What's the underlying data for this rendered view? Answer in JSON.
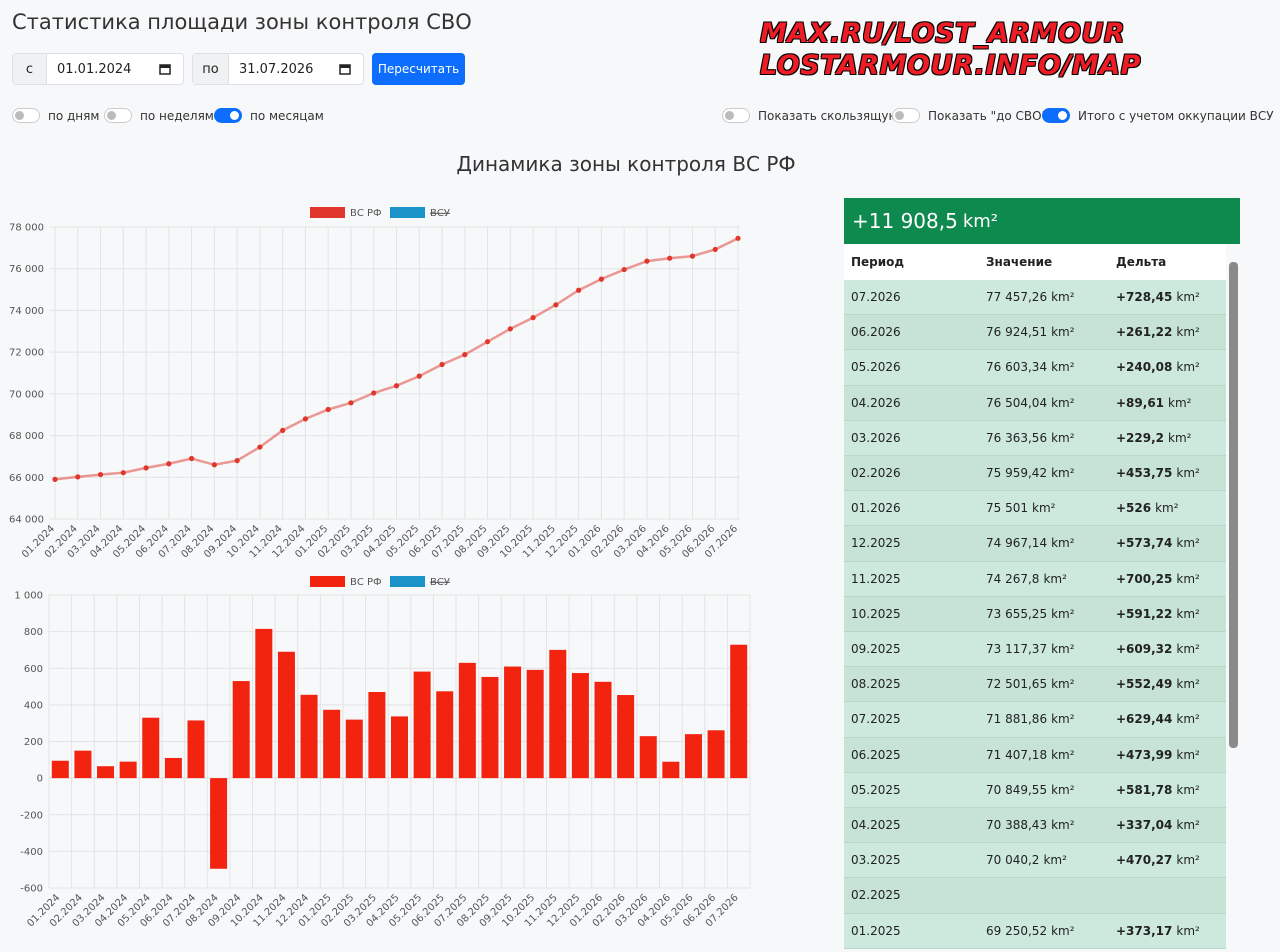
{
  "header": {
    "title": "Статистика площади зоны контроля СВО",
    "from_label": "с",
    "from_date": "01.01.2024",
    "to_label": "по",
    "to_date": "31.07.2026",
    "button": "Пересчитать"
  },
  "watermark": [
    "MAX.RU/LOST_ARMOUR",
    "LOSTARMOUR.INFO/MAP"
  ],
  "toggles_left": [
    {
      "label": "по дням",
      "on": false
    },
    {
      "label": "по неделям",
      "on": false
    },
    {
      "label": "по месяцам",
      "on": true
    }
  ],
  "toggles_right": [
    {
      "label": "Показать скользящую",
      "on": false
    },
    {
      "label": "Показать \"до СВО\"",
      "on": false
    },
    {
      "label": "Итого с учетом оккупации ВСУ",
      "on": true
    }
  ],
  "chart_data": [
    {
      "type": "line",
      "title": "Динамика зоны контроля ВС РФ",
      "categories": [
        "01.2024",
        "02.2024",
        "03.2024",
        "04.2024",
        "05.2024",
        "06.2024",
        "07.2024",
        "08.2024",
        "09.2024",
        "10.2024",
        "11.2024",
        "12.2024",
        "01.2025",
        "02.2025",
        "03.2025",
        "04.2025",
        "05.2025",
        "06.2025",
        "07.2025",
        "08.2025",
        "09.2025",
        "10.2025",
        "11.2025",
        "12.2025",
        "01.2026",
        "02.2026",
        "03.2026",
        "04.2026",
        "05.2026",
        "06.2026",
        "07.2026"
      ],
      "series": [
        {
          "name": "ВС РФ",
          "color": "#e0362c",
          "values": [
            65900,
            66020,
            66130,
            66220,
            66450,
            66650,
            66900,
            66600,
            66800,
            67450,
            68250,
            68800,
            69250.52,
            69569.93,
            70040.2,
            70388.43,
            70849.55,
            71407.18,
            71881.86,
            72501.65,
            73117.37,
            73655.25,
            74267.8,
            74967.14,
            75501,
            75959.42,
            76363.56,
            76504.04,
            76603.34,
            76924.51,
            77457.26
          ]
        },
        {
          "name": "ВСУ",
          "color": "#1a93c9",
          "hidden": true
        }
      ],
      "ylim": [
        64000,
        78000
      ],
      "yticks": [
        {
          "value": 64000,
          "label": "64 000"
        },
        {
          "value": 66000,
          "label": "66 000"
        },
        {
          "value": 68000,
          "label": "68 000"
        },
        {
          "value": 70000,
          "label": "70 000"
        },
        {
          "value": 72000,
          "label": "72 000"
        },
        {
          "value": 74000,
          "label": "74 000"
        },
        {
          "value": 76000,
          "label": "76 000"
        },
        {
          "value": 78000,
          "label": "78 000"
        }
      ],
      "grid": true
    },
    {
      "type": "bar",
      "categories": [
        "01.2024",
        "02.2024",
        "03.2024",
        "04.2024",
        "05.2024",
        "06.2024",
        "07.2024",
        "08.2024",
        "09.2024",
        "10.2024",
        "11.2024",
        "12.2024",
        "01.2025",
        "02.2025",
        "03.2025",
        "04.2025",
        "05.2025",
        "06.2025",
        "07.2025",
        "08.2025",
        "09.2025",
        "10.2025",
        "11.2025",
        "12.2025",
        "01.2026",
        "02.2026",
        "03.2026",
        "04.2026",
        "05.2026",
        "06.2026",
        "07.2026"
      ],
      "series": [
        {
          "name": "ВС РФ",
          "color": "#f2230f",
          "values": [
            95,
            150,
            65,
            90,
            330,
            110,
            315,
            -495,
            530,
            815,
            690,
            455,
            373.17,
            319.41,
            470.27,
            337.04,
            581.78,
            473.99,
            629.44,
            552.49,
            609.32,
            591.22,
            700.25,
            573.74,
            526,
            453.75,
            229.2,
            89.61,
            240.08,
            261.22,
            728.45
          ]
        },
        {
          "name": "ВСУ",
          "color": "#1a93c9",
          "hidden": true
        }
      ],
      "ylim": [
        -600,
        1000
      ],
      "yticks": [
        -600,
        -400,
        -200,
        0,
        200,
        400,
        600,
        800,
        {
          "value": 1000,
          "label": "1 000"
        }
      ],
      "grid": true
    }
  ],
  "summary": {
    "value": "+11 908,5",
    "unit": "km²"
  },
  "table": {
    "unit": "km²",
    "columns": [
      "Период",
      "Значение",
      "Дельта"
    ],
    "rows": [
      [
        "07.2026",
        "77 457,26",
        "+728,45"
      ],
      [
        "06.2026",
        "76 924,51",
        "+261,22"
      ],
      [
        "05.2026",
        "76 603,34",
        "+240,08"
      ],
      [
        "04.2026",
        "76 504,04",
        "+89,61"
      ],
      [
        "03.2026",
        "76 363,56",
        "+229,2"
      ],
      [
        "02.2026",
        "75 959,42",
        "+453,75"
      ],
      [
        "01.2026",
        "75 501",
        "+526"
      ],
      [
        "12.2025",
        "74 967,14",
        "+573,74"
      ],
      [
        "11.2025",
        "74 267,8",
        "+700,25"
      ],
      [
        "10.2025",
        "73 655,25",
        "+591,22"
      ],
      [
        "09.2025",
        "73 117,37",
        "+609,32"
      ],
      [
        "08.2025",
        "72 501,65",
        "+552,49"
      ],
      [
        "07.2025",
        "71 881,86",
        "+629,44"
      ],
      [
        "06.2025",
        "71 407,18",
        "+473,99"
      ],
      [
        "05.2025",
        "70 849,55",
        "+581,78"
      ],
      [
        "04.2025",
        "70 388,43",
        "+337,04"
      ],
      [
        "03.2025",
        "70 040,2",
        "+470,27"
      ],
      [
        "02.2025"
      ],
      [
        "01.2025",
        "69 250,52",
        "+373,17"
      ]
    ]
  }
}
